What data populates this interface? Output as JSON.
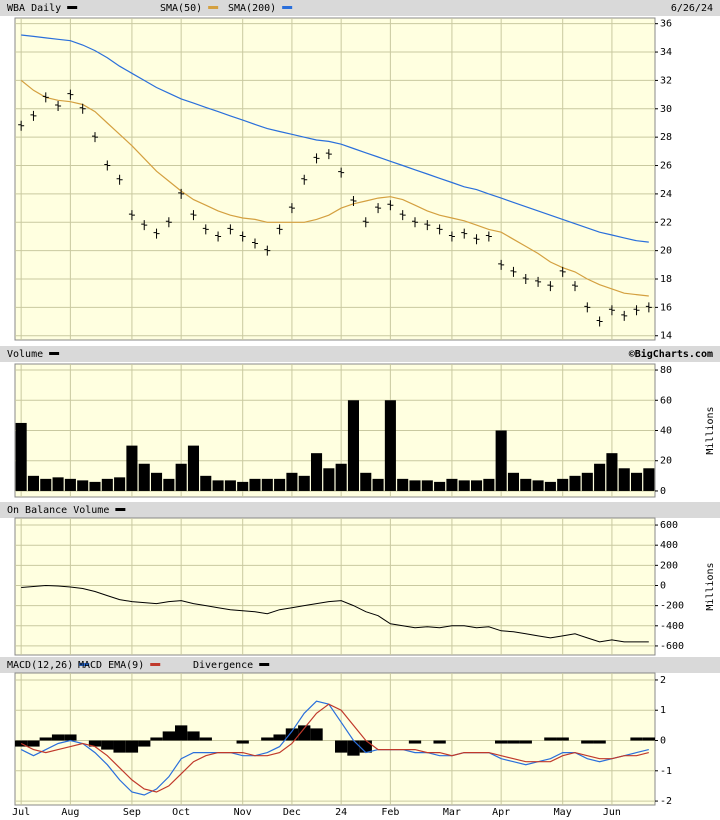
{
  "chart_data": [
    {
      "type": "ohlc",
      "title": "WBA Daily",
      "date": "6/26/24",
      "ylim": [
        13.7,
        36.4
      ],
      "yticks": [
        14,
        16,
        18,
        20,
        22,
        24,
        26,
        28,
        30,
        32,
        34,
        36
      ],
      "series": [
        {
          "name": "WBA Daily",
          "color": "#000000",
          "values": [
            28.8,
            29.5,
            30.8,
            30.2,
            31.0,
            30.0,
            28.0,
            26.0,
            25.0,
            22.5,
            21.8,
            21.2,
            22.0,
            24.0,
            22.5,
            21.5,
            21.0,
            21.5,
            21.0,
            20.5,
            20.0,
            21.5,
            23.0,
            25.0,
            26.5,
            26.8,
            25.5,
            23.5,
            22.0,
            23.0,
            23.2,
            22.5,
            22.0,
            21.8,
            21.5,
            21.0,
            21.2,
            20.8,
            21.0,
            19.0,
            18.5,
            18.0,
            17.8,
            17.5,
            18.5,
            17.5,
            16.0,
            15.0,
            15.8,
            15.4,
            15.8,
            16.0
          ]
        },
        {
          "name": "SMA(50)",
          "color": "#d4a040",
          "values": [
            32.0,
            31.3,
            30.8,
            30.6,
            30.5,
            30.3,
            29.8,
            29.0,
            28.2,
            27.4,
            26.5,
            25.6,
            24.9,
            24.2,
            23.6,
            23.2,
            22.8,
            22.5,
            22.3,
            22.2,
            22.0,
            22.0,
            22.0,
            22.0,
            22.2,
            22.5,
            23.0,
            23.3,
            23.5,
            23.7,
            23.8,
            23.6,
            23.2,
            22.8,
            22.5,
            22.3,
            22.1,
            21.8,
            21.5,
            21.3,
            20.8,
            20.3,
            19.8,
            19.2,
            18.8,
            18.5,
            18.0,
            17.6,
            17.3,
            17.0,
            16.9,
            16.8
          ]
        },
        {
          "name": "SMA(200)",
          "color": "#2a6fdb",
          "values": [
            35.2,
            35.1,
            35.0,
            34.9,
            34.8,
            34.5,
            34.1,
            33.6,
            33.0,
            32.5,
            32.0,
            31.5,
            31.1,
            30.7,
            30.4,
            30.1,
            29.8,
            29.5,
            29.2,
            28.9,
            28.6,
            28.4,
            28.2,
            28.0,
            27.8,
            27.7,
            27.5,
            27.2,
            26.9,
            26.6,
            26.3,
            26.0,
            25.7,
            25.4,
            25.1,
            24.8,
            24.5,
            24.3,
            24.0,
            23.7,
            23.4,
            23.1,
            22.8,
            22.5,
            22.2,
            21.9,
            21.6,
            21.3,
            21.1,
            20.9,
            20.7,
            20.6
          ]
        }
      ]
    },
    {
      "type": "area",
      "credit": "©BigCharts.com",
      "y_label": "Millions",
      "ylim": [
        -4,
        84
      ],
      "yticks": [
        0,
        20,
        40,
        60,
        80
      ],
      "series": [
        {
          "name": "Volume",
          "color": "#000000",
          "values": [
            45,
            10,
            8,
            9,
            8,
            7,
            6,
            8,
            9,
            30,
            18,
            12,
            8,
            18,
            30,
            10,
            7,
            7,
            6,
            8,
            8,
            8,
            12,
            10,
            25,
            15,
            18,
            60,
            12,
            8,
            60,
            8,
            7,
            7,
            6,
            8,
            7,
            7,
            8,
            40,
            12,
            8,
            7,
            6,
            8,
            10,
            12,
            18,
            25,
            15,
            12,
            15
          ]
        }
      ]
    },
    {
      "type": "line",
      "y_label": "Millions",
      "ylim": [
        -690,
        670
      ],
      "yticks": [
        -600,
        -400,
        -200,
        0,
        200,
        400,
        600
      ],
      "series": [
        {
          "name": "On Balance Volume",
          "color": "#000000",
          "values": [
            -20,
            -10,
            0,
            -5,
            -15,
            -30,
            -60,
            -100,
            -140,
            -160,
            -170,
            -180,
            -160,
            -150,
            -180,
            -200,
            -220,
            -240,
            -250,
            -260,
            -280,
            -240,
            -220,
            -200,
            -180,
            -160,
            -150,
            -200,
            -260,
            -300,
            -380,
            -400,
            -420,
            -410,
            -420,
            -400,
            -400,
            -420,
            -410,
            -450,
            -460,
            -480,
            -500,
            -520,
            -500,
            -480,
            -520,
            -560,
            -540,
            -560,
            -560,
            -560
          ]
        }
      ]
    },
    {
      "type": "macd",
      "ylim": [
        -2.13,
        2.23
      ],
      "yticks": [
        -2,
        -1,
        0,
        1,
        2
      ],
      "categories": [
        "Jul",
        null,
        null,
        null,
        "Aug",
        null,
        null,
        null,
        null,
        "Sep",
        null,
        null,
        null,
        "Oct",
        null,
        null,
        null,
        null,
        "Nov",
        null,
        null,
        null,
        "Dec",
        null,
        null,
        null,
        "24",
        null,
        null,
        null,
        "Feb",
        null,
        null,
        null,
        null,
        "Mar",
        null,
        null,
        null,
        "Apr",
        null,
        null,
        null,
        null,
        "May",
        null,
        null,
        null,
        "Jun",
        null,
        null,
        null
      ],
      "series": [
        {
          "name": "MACD(12,26)",
          "color": "#2a6fdb",
          "values": [
            -0.3,
            -0.5,
            -0.3,
            -0.1,
            0,
            -0.1,
            -0.4,
            -0.8,
            -1.3,
            -1.7,
            -1.8,
            -1.6,
            -1.2,
            -0.6,
            -0.4,
            -0.4,
            -0.4,
            -0.4,
            -0.5,
            -0.5,
            -0.4,
            -0.2,
            0.3,
            0.9,
            1.3,
            1.2,
            0.6,
            0,
            -0.4,
            -0.3,
            -0.3,
            -0.3,
            -0.4,
            -0.4,
            -0.5,
            -0.5,
            -0.4,
            -0.4,
            -0.4,
            -0.6,
            -0.7,
            -0.8,
            -0.7,
            -0.6,
            -0.4,
            -0.4,
            -0.6,
            -0.7,
            -0.6,
            -0.5,
            -0.4,
            -0.3
          ]
        },
        {
          "name": "MACD EMA(9)",
          "color": "#c0392b",
          "values": [
            -0.1,
            -0.3,
            -0.4,
            -0.3,
            -0.2,
            -0.1,
            -0.2,
            -0.5,
            -0.9,
            -1.3,
            -1.6,
            -1.7,
            -1.5,
            -1.1,
            -0.7,
            -0.5,
            -0.4,
            -0.4,
            -0.4,
            -0.5,
            -0.5,
            -0.4,
            -0.1,
            0.4,
            0.9,
            1.2,
            1.0,
            0.5,
            0,
            -0.3,
            -0.3,
            -0.3,
            -0.3,
            -0.4,
            -0.4,
            -0.5,
            -0.4,
            -0.4,
            -0.4,
            -0.5,
            -0.6,
            -0.7,
            -0.7,
            -0.7,
            -0.5,
            -0.4,
            -0.5,
            -0.6,
            -0.6,
            -0.5,
            -0.5,
            -0.4
          ]
        },
        {
          "name": "Divergence",
          "color": "#000000",
          "values": [
            -0.2,
            -0.2,
            0.1,
            0.2,
            0.2,
            0,
            -0.2,
            -0.3,
            -0.4,
            -0.4,
            -0.2,
            0.1,
            0.3,
            0.5,
            0.3,
            0.1,
            0,
            0,
            -0.1,
            0,
            0.1,
            0.2,
            0.4,
            0.5,
            0.4,
            0,
            -0.4,
            -0.5,
            -0.4,
            0,
            0,
            0,
            -0.1,
            0,
            -0.1,
            0,
            0,
            0,
            0,
            -0.1,
            -0.1,
            -0.1,
            0,
            0.1,
            0.1,
            0,
            -0.1,
            -0.1,
            0,
            0,
            0.1,
            0.1
          ]
        }
      ]
    }
  ]
}
